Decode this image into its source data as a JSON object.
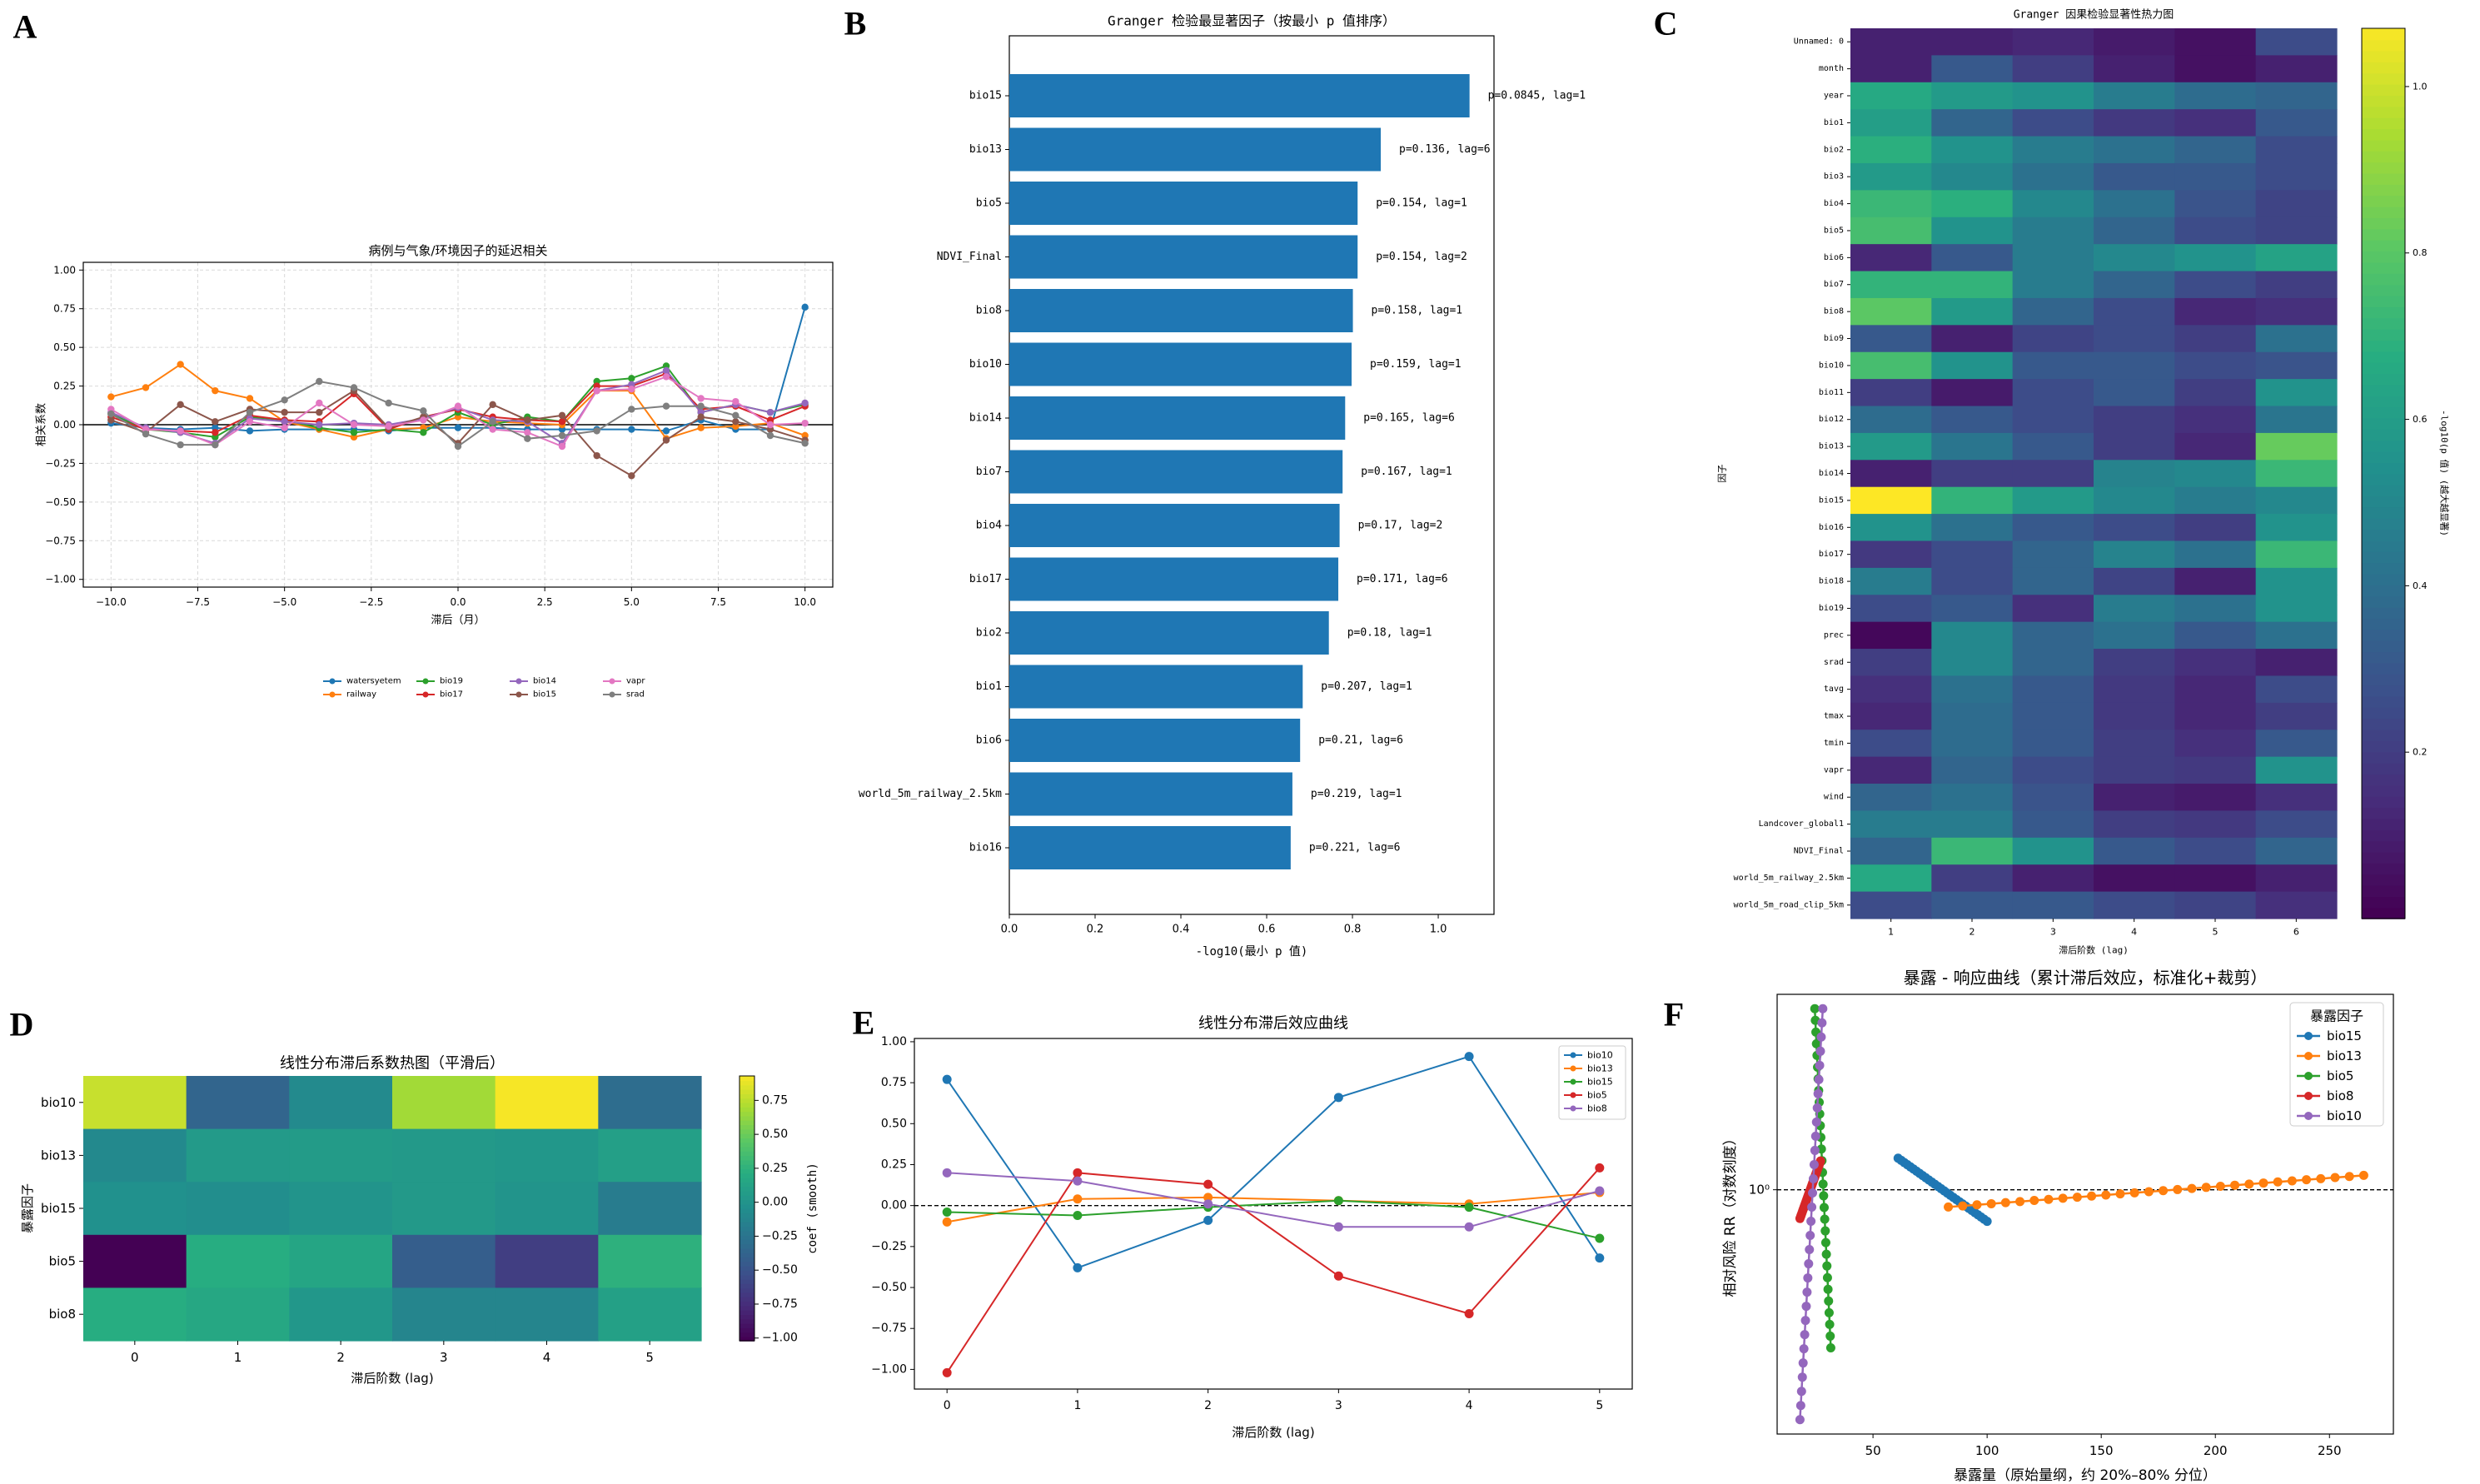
{
  "panel_labels": [
    "A",
    "B",
    "C",
    "D",
    "E",
    "F"
  ],
  "colors": {
    "blue": "#1f77b4",
    "orange": "#ff7f0e",
    "green": "#2ca02c",
    "red": "#d62728",
    "purple": "#9467bd",
    "brown": "#8c564b",
    "pink": "#e377c2",
    "gray": "#7f7f7f"
  },
  "chart_data": [
    {
      "id": "A",
      "type": "line",
      "title": "病例与气象/环境因子的延迟相关",
      "xlabel": "滞后（月）",
      "ylabel": "相关系数",
      "xlim": [
        -10.8,
        10.8
      ],
      "ylim": [
        -1.05,
        1.05
      ],
      "xticks": [
        -10.0,
        -7.5,
        -5.0,
        -2.5,
        0.0,
        2.5,
        5.0,
        7.5,
        10.0
      ],
      "yticks": [
        -1.0,
        -0.75,
        -0.5,
        -0.25,
        0.0,
        0.25,
        0.5,
        0.75,
        1.0
      ],
      "grid": true,
      "legend": "below",
      "x": [
        -10,
        -9,
        -8,
        -7,
        -6,
        -5,
        -4,
        -3,
        -2,
        -1,
        0,
        1,
        2,
        3,
        4,
        5,
        6,
        7,
        8,
        9,
        10
      ],
      "series": [
        {
          "name": "watersyetem",
          "color": "#1f77b4",
          "values": [
            0.01,
            -0.02,
            -0.03,
            -0.02,
            -0.04,
            -0.03,
            -0.03,
            -0.03,
            -0.04,
            -0.02,
            -0.02,
            -0.02,
            -0.03,
            -0.03,
            -0.03,
            -0.03,
            -0.04,
            0.03,
            -0.03,
            -0.03,
            0.76
          ]
        },
        {
          "name": "railway",
          "color": "#ff7f0e",
          "values": [
            0.18,
            0.24,
            0.39,
            0.22,
            0.17,
            0.02,
            -0.03,
            -0.08,
            -0.03,
            -0.02,
            0.05,
            0.02,
            0.01,
            0.0,
            0.22,
            0.22,
            -0.09,
            -0.02,
            -0.01,
            0.01,
            -0.07
          ]
        },
        {
          "name": "bio19",
          "color": "#2ca02c",
          "values": [
            0.07,
            -0.03,
            -0.05,
            -0.08,
            0.05,
            0.03,
            -0.02,
            -0.05,
            -0.03,
            -0.05,
            0.08,
            0.0,
            0.05,
            0.02,
            0.28,
            0.3,
            0.38,
            0.08,
            0.13,
            0.08,
            0.13
          ]
        },
        {
          "name": "bio17",
          "color": "#d62728",
          "values": [
            0.05,
            -0.03,
            -0.04,
            -0.05,
            0.06,
            0.03,
            0.02,
            0.2,
            -0.03,
            0.05,
            0.1,
            0.05,
            0.03,
            0.02,
            0.25,
            0.25,
            0.33,
            0.1,
            0.12,
            0.03,
            0.12
          ]
        },
        {
          "name": "bio14",
          "color": "#9467bd",
          "values": [
            0.08,
            -0.02,
            -0.05,
            -0.12,
            0.04,
            0.02,
            0.0,
            0.01,
            0.0,
            0.04,
            0.11,
            0.03,
            0.02,
            -0.12,
            0.22,
            0.26,
            0.35,
            0.08,
            0.13,
            0.08,
            0.14
          ]
        },
        {
          "name": "bio15",
          "color": "#8c564b",
          "values": [
            0.03,
            -0.05,
            0.13,
            0.02,
            0.1,
            0.08,
            0.08,
            0.22,
            -0.02,
            0.05,
            -0.12,
            0.13,
            0.03,
            0.06,
            -0.2,
            -0.33,
            -0.1,
            0.05,
            0.02,
            -0.03,
            -0.1
          ]
        },
        {
          "name": "vapr",
          "color": "#e377c2",
          "values": [
            0.1,
            -0.03,
            -0.04,
            -0.13,
            0.02,
            -0.02,
            0.14,
            0.0,
            -0.01,
            0.03,
            0.12,
            -0.03,
            -0.05,
            -0.14,
            0.22,
            0.23,
            0.31,
            0.17,
            0.15,
            0.0,
            0.01
          ]
        },
        {
          "name": "srad",
          "color": "#7f7f7f",
          "values": [
            0.07,
            -0.06,
            -0.13,
            -0.13,
            0.08,
            0.16,
            0.28,
            0.24,
            0.14,
            0.09,
            -0.14,
            0.02,
            -0.09,
            -0.07,
            -0.04,
            0.1,
            0.12,
            0.12,
            0.06,
            -0.07,
            -0.12
          ]
        }
      ]
    },
    {
      "id": "B",
      "type": "bar",
      "title": "Granger 检验最显著因子（按最小 p 值排序）",
      "xlabel": "-log10(最小 p 值)",
      "ylabel": "",
      "xlim": [
        0,
        1.13
      ],
      "xticks": [
        0.0,
        0.2,
        0.4,
        0.6,
        0.8,
        1.0
      ],
      "categories": [
        "bio15",
        "bio13",
        "bio5",
        "NDVI_Final",
        "bio8",
        "bio10",
        "bio14",
        "bio7",
        "bio4",
        "bio17",
        "bio2",
        "bio1",
        "bio6",
        "world_5m_railway_2.5km",
        "bio16"
      ],
      "values": [
        1.073,
        0.866,
        0.812,
        0.812,
        0.801,
        0.798,
        0.783,
        0.777,
        0.77,
        0.767,
        0.745,
        0.684,
        0.678,
        0.66,
        0.656
      ],
      "labels": [
        "p=0.0845, lag=1",
        "p=0.136, lag=6",
        "p=0.154, lag=1",
        "p=0.154, lag=2",
        "p=0.158, lag=1",
        "p=0.159, lag=1",
        "p=0.165, lag=6",
        "p=0.167, lag=1",
        "p=0.17, lag=2",
        "p=0.171, lag=6",
        "p=0.18, lag=1",
        "p=0.207, lag=1",
        "p=0.21, lag=6",
        "p=0.219, lag=1",
        "p=0.221, lag=6"
      ]
    },
    {
      "id": "C",
      "type": "heatmap",
      "title": "Granger 因果检验显著性热力图",
      "xlabel": "滞后阶数 (lag)",
      "ylabel": "因子",
      "colorbar_label": "-log10(p 值) (越大越显著)",
      "colorbar_ticks": [
        0.2,
        0.4,
        0.6,
        0.8,
        1.0
      ],
      "vmin": 0.0,
      "vmax": 1.07,
      "x": [
        "1",
        "2",
        "3",
        "4",
        "5",
        "6"
      ],
      "rows": [
        "Unnamed: 0",
        "month",
        "year",
        "bio1",
        "bio2",
        "bio3",
        "bio4",
        "bio5",
        "bio6",
        "bio7",
        "bio8",
        "bio9",
        "bio10",
        "bio11",
        "bio12",
        "bio13",
        "bio14",
        "bio15",
        "bio16",
        "bio17",
        "bio18",
        "bio19",
        "prec",
        "srad",
        "tavg",
        "tmax",
        "tmin",
        "vapr",
        "wind",
        "Landcover_global1",
        "NDVI_Final",
        "world_5m_railway_2.5km",
        "world_5m_road_clip_5km"
      ],
      "values": [
        [
          0.1,
          0.1,
          0.12,
          0.08,
          0.05,
          0.25
        ],
        [
          0.1,
          0.3,
          0.2,
          0.1,
          0.05,
          0.1
        ],
        [
          0.65,
          0.58,
          0.55,
          0.45,
          0.38,
          0.35
        ],
        [
          0.6,
          0.35,
          0.25,
          0.18,
          0.15,
          0.3
        ],
        [
          0.68,
          0.55,
          0.45,
          0.4,
          0.35,
          0.25
        ],
        [
          0.58,
          0.5,
          0.4,
          0.3,
          0.3,
          0.25
        ],
        [
          0.72,
          0.68,
          0.5,
          0.4,
          0.28,
          0.22
        ],
        [
          0.75,
          0.55,
          0.45,
          0.35,
          0.25,
          0.22
        ],
        [
          0.12,
          0.3,
          0.45,
          0.5,
          0.55,
          0.62
        ],
        [
          0.7,
          0.7,
          0.45,
          0.35,
          0.25,
          0.2
        ],
        [
          0.8,
          0.58,
          0.35,
          0.25,
          0.12,
          0.15
        ],
        [
          0.3,
          0.1,
          0.22,
          0.25,
          0.2,
          0.4
        ],
        [
          0.75,
          0.55,
          0.3,
          0.3,
          0.25,
          0.28
        ],
        [
          0.2,
          0.08,
          0.25,
          0.3,
          0.2,
          0.55
        ],
        [
          0.38,
          0.3,
          0.25,
          0.2,
          0.15,
          0.42
        ],
        [
          0.58,
          0.42,
          0.3,
          0.2,
          0.12,
          0.82
        ],
        [
          0.1,
          0.2,
          0.2,
          0.48,
          0.5,
          0.72
        ],
        [
          1.07,
          0.7,
          0.58,
          0.5,
          0.45,
          0.5
        ],
        [
          0.55,
          0.4,
          0.3,
          0.25,
          0.2,
          0.55
        ],
        [
          0.18,
          0.25,
          0.35,
          0.48,
          0.4,
          0.72
        ],
        [
          0.45,
          0.25,
          0.35,
          0.22,
          0.1,
          0.55
        ],
        [
          0.25,
          0.3,
          0.15,
          0.45,
          0.4,
          0.55
        ],
        [
          0.02,
          0.5,
          0.35,
          0.4,
          0.3,
          0.4
        ],
        [
          0.2,
          0.5,
          0.35,
          0.2,
          0.15,
          0.1
        ],
        [
          0.15,
          0.4,
          0.3,
          0.18,
          0.12,
          0.25
        ],
        [
          0.12,
          0.38,
          0.3,
          0.18,
          0.12,
          0.2
        ],
        [
          0.25,
          0.38,
          0.3,
          0.2,
          0.15,
          0.3
        ],
        [
          0.12,
          0.35,
          0.25,
          0.2,
          0.18,
          0.55
        ],
        [
          0.35,
          0.4,
          0.28,
          0.1,
          0.08,
          0.15
        ],
        [
          0.45,
          0.45,
          0.3,
          0.2,
          0.18,
          0.25
        ],
        [
          0.35,
          0.72,
          0.55,
          0.3,
          0.25,
          0.35
        ],
        [
          0.65,
          0.2,
          0.1,
          0.05,
          0.05,
          0.1
        ],
        [
          0.25,
          0.3,
          0.3,
          0.25,
          0.22,
          0.15
        ]
      ]
    },
    {
      "id": "D",
      "type": "heatmap",
      "title": "线性分布滞后系数热图（平滑后）",
      "xlabel": "滞后阶数 (lag)",
      "ylabel": "暴露因子",
      "colorbar_label": "coef (smooth)",
      "colorbar_ticks": [
        -1.0,
        -0.75,
        -0.5,
        -0.25,
        0.0,
        0.25,
        0.5,
        0.75
      ],
      "vmin": -1.02,
      "vmax": 0.93,
      "x": [
        "0",
        "1",
        "2",
        "3",
        "4",
        "5"
      ],
      "rows": [
        "bio10",
        "bio13",
        "bio15",
        "bio5",
        "bio8"
      ],
      "values": [
        [
          0.77,
          -0.38,
          -0.09,
          0.66,
          0.91,
          -0.32
        ],
        [
          -0.1,
          0.04,
          0.05,
          0.03,
          0.01,
          0.08
        ],
        [
          -0.04,
          -0.06,
          -0.01,
          0.03,
          -0.01,
          -0.2
        ],
        [
          -1.02,
          0.2,
          0.13,
          -0.43,
          -0.66,
          0.23
        ],
        [
          0.2,
          0.15,
          0.01,
          -0.13,
          -0.13,
          0.09
        ]
      ]
    },
    {
      "id": "E",
      "type": "line",
      "title": "线性分布滞后效应曲线",
      "xlabel": "滞后阶数 (lag)",
      "ylabel": "",
      "xlim": [
        -0.25,
        5.25
      ],
      "ylim": [
        -1.12,
        1.02
      ],
      "xticks": [
        0,
        1,
        2,
        3,
        4,
        5
      ],
      "yticks": [
        -1.0,
        -0.75,
        -0.5,
        -0.25,
        0.0,
        0.25,
        0.5,
        0.75,
        1.0
      ],
      "legend": "top-right",
      "x": [
        0,
        1,
        2,
        3,
        4,
        5
      ],
      "series": [
        {
          "name": "bio10",
          "color": "#1f77b4",
          "values": [
            0.77,
            -0.38,
            -0.09,
            0.66,
            0.91,
            -0.32
          ]
        },
        {
          "name": "bio13",
          "color": "#ff7f0e",
          "values": [
            -0.1,
            0.04,
            0.05,
            0.03,
            0.01,
            0.08
          ]
        },
        {
          "name": "bio15",
          "color": "#2ca02c",
          "values": [
            -0.04,
            -0.06,
            -0.01,
            0.03,
            -0.01,
            -0.2
          ]
        },
        {
          "name": "bio5",
          "color": "#d62728",
          "values": [
            -1.02,
            0.2,
            0.13,
            -0.43,
            -0.66,
            0.23
          ]
        },
        {
          "name": "bio8",
          "color": "#9467bd",
          "values": [
            0.2,
            0.15,
            0.01,
            -0.13,
            -0.13,
            0.09
          ]
        }
      ]
    },
    {
      "id": "F",
      "type": "line",
      "title": "暴露 - 响应曲线（累计滞后效应，标准化+裁剪）",
      "xlabel": "暴露量（原始量纲，约 20%–80% 分位）",
      "ylabel": "相对风险 RR（对数刻度）",
      "legend_title": "暴露因子",
      "legend": "top-right",
      "xlim": [
        8,
        278
      ],
      "xticks": [
        50,
        100,
        150,
        200,
        250
      ],
      "ylim_log10": [
        -0.085,
        0.068
      ],
      "ytick_label": "10⁰",
      "ytick_value": 1,
      "series": [
        {
          "name": "bio15",
          "color": "#1f77b4",
          "x_range": [
            61,
            100
          ],
          "log10_rr": [
            0.011,
            -0.011
          ]
        },
        {
          "name": "bio13",
          "color": "#ff7f0e",
          "x_range": [
            83,
            265
          ],
          "log10_rr": [
            -0.006,
            0.005
          ]
        },
        {
          "name": "bio5",
          "color": "#2ca02c",
          "x_range": [
            24.5,
            31.5
          ],
          "log10_rr": [
            0.063,
            -0.055
          ]
        },
        {
          "name": "bio8",
          "color": "#d62728",
          "x_range": [
            18,
            27
          ],
          "log10_rr": [
            -0.01,
            0.01
          ]
        },
        {
          "name": "bio10",
          "color": "#9467bd",
          "x_range": [
            18,
            28
          ],
          "log10_rr": [
            -0.08,
            0.063
          ]
        }
      ]
    }
  ]
}
